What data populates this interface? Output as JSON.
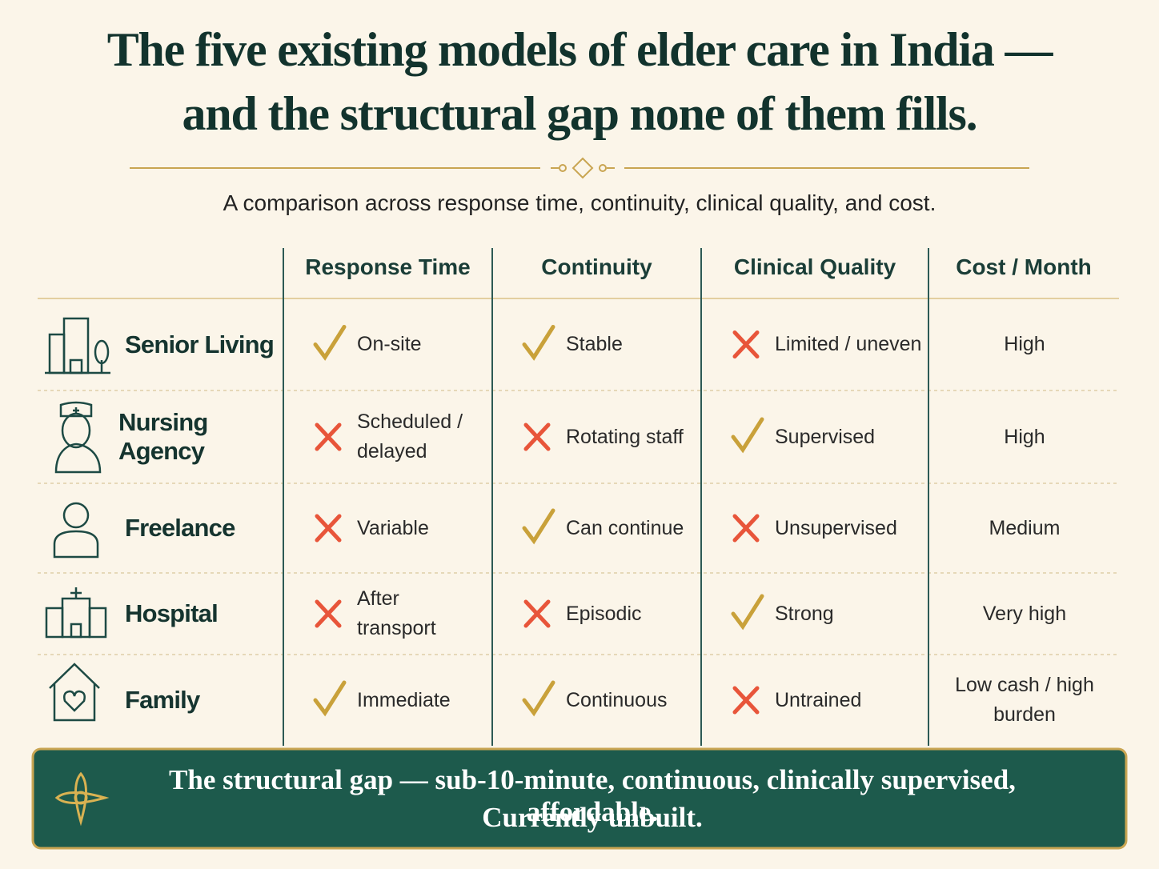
{
  "header": {
    "title": [
      "The five existing models of elder care in India —",
      "and the structural gap none of them fills."
    ],
    "subtitle": "A comparison across response time, continuity, clinical quality, and cost."
  },
  "table": {
    "columns": [
      "Response Time",
      "Continuity",
      "Clinical Quality",
      "Cost / Month"
    ],
    "rows": [
      {
        "label": "Senior Living",
        "cells": [
          {
            "status": "check",
            "text": "On-site"
          },
          {
            "status": "check",
            "text": "Stable"
          },
          {
            "status": "cross",
            "text": "Limited / uneven"
          }
        ],
        "cost": "High"
      },
      {
        "label": "Nursing Agency",
        "cells": [
          {
            "status": "cross",
            "text": "Scheduled / delayed"
          },
          {
            "status": "cross",
            "text": "Rotating staff"
          },
          {
            "status": "check",
            "text": "Supervised"
          }
        ],
        "cost": "High"
      },
      {
        "label": "Freelance",
        "cells": [
          {
            "status": "cross",
            "text": "Variable"
          },
          {
            "status": "check",
            "text": "Can continue"
          },
          {
            "status": "cross",
            "text": "Unsupervised"
          }
        ],
        "cost": "Medium"
      },
      {
        "label": "Hospital",
        "cells": [
          {
            "status": "cross",
            "text": "After transport"
          },
          {
            "status": "cross",
            "text": "Episodic"
          },
          {
            "status": "check",
            "text": "Strong"
          }
        ],
        "cost": "Very high"
      },
      {
        "label": "Family",
        "cells": [
          {
            "status": "check",
            "text": "Immediate"
          },
          {
            "status": "check",
            "text": "Continuous"
          },
          {
            "status": "cross",
            "text": "Untrained"
          }
        ],
        "cost": "Low cash / high burden"
      }
    ]
  },
  "footer": {
    "lines": [
      "The structural gap — sub-10-minute, continuous, clinically supervised, affordable.",
      "Currently unbuilt."
    ]
  }
}
